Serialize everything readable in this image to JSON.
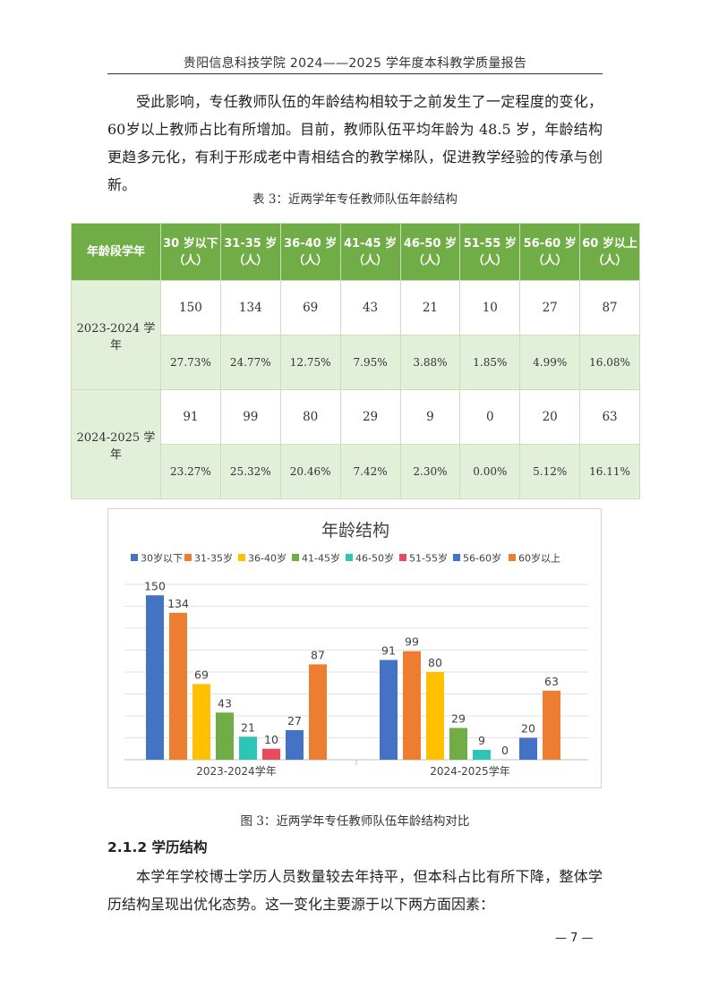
{
  "header": {
    "title": "贵阳信息科技学院 2024——2025 学年度本科教学质量报告"
  },
  "paragraph1": "受此影响，专任教师队伍的年龄结构相较于之前发生了一定程度的变化，60岁以上教师占比有所增加。目前，教师队伍平均年龄为 48.5 岁，年龄结构更趋多元化，有利于形成老中青相结合的教学梯队，促进教学经验的传承与创新。",
  "table": {
    "caption": "表 3：近两学年专任教师队伍年龄结构",
    "corner": "年龄段学年",
    "columns": [
      {
        "line1": "30 岁以下",
        "line2": "（人）"
      },
      {
        "line1": "31-35 岁",
        "line2": "（人）"
      },
      {
        "line1": "36-40 岁",
        "line2": "（人）"
      },
      {
        "line1": "41-45 岁",
        "line2": "（人）"
      },
      {
        "line1": "46-50 岁",
        "line2": "（人）"
      },
      {
        "line1": "51-55 岁",
        "line2": "（人）"
      },
      {
        "line1": "56-60 岁",
        "line2": "（人）"
      },
      {
        "line1": "60 岁以上",
        "line2": "（人）"
      }
    ],
    "rows": [
      {
        "year": "2023-2024 学年",
        "counts": [
          "150",
          "134",
          "69",
          "43",
          "21",
          "10",
          "27",
          "87"
        ],
        "percents": [
          "27.73%",
          "24.77%",
          "12.75%",
          "7.95%",
          "3.88%",
          "1.85%",
          "4.99%",
          "16.08%"
        ]
      },
      {
        "year": "2024-2025 学年",
        "counts": [
          "91",
          "99",
          "80",
          "29",
          "9",
          "0",
          "20",
          "63"
        ],
        "percents": [
          "23.27%",
          "25.32%",
          "20.46%",
          "7.42%",
          "2.30%",
          "0.00%",
          "5.12%",
          "16.11%"
        ]
      }
    ]
  },
  "chart_data": {
    "type": "bar",
    "title": "年龄结构",
    "categories": [
      "2023-2024学年",
      "2024-2025学年"
    ],
    "series": [
      {
        "name": "30岁以下",
        "values": [
          150,
          91
        ],
        "color": "#4472c4"
      },
      {
        "name": "31-35岁",
        "values": [
          134,
          99
        ],
        "color": "#ed7d31"
      },
      {
        "name": "36-40岁",
        "values": [
          69,
          80
        ],
        "color": "#ffc000"
      },
      {
        "name": "41-45岁",
        "values": [
          43,
          29
        ],
        "color": "#70ad47"
      },
      {
        "name": "46-50岁",
        "values": [
          21,
          9
        ],
        "color": "#2ec4b6"
      },
      {
        "name": "51-55岁",
        "values": [
          10,
          0
        ],
        "color": "#e84c5c"
      },
      {
        "name": "56-60岁",
        "values": [
          27,
          20
        ],
        "color": "#4472c4"
      },
      {
        "name": "60岁以上",
        "values": [
          87,
          63
        ],
        "color": "#ed7d31"
      }
    ],
    "ylim": [
      0,
      160
    ],
    "grid": true,
    "legend_position": "top",
    "data_labels": true
  },
  "figure_caption": "图 3：近两学年专任教师队伍年龄结构对比",
  "section": {
    "title": "2.1.2 学历结构"
  },
  "paragraph2": "本学年学校博士学历人员数量较去年持平，但本科占比有所下降，整体学历结构呈现出优化态势。这一变化主要源于以下两方面因素：",
  "page_number": "— 7 —"
}
